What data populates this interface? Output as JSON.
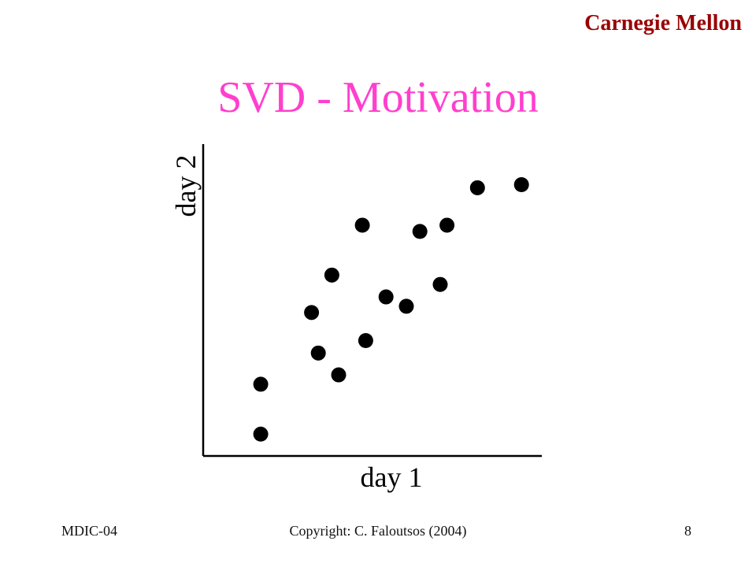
{
  "header": {
    "org": "Carnegie Mellon",
    "title": "SVD - Motivation"
  },
  "footer": {
    "left": "MDIC-04",
    "center": "Copyright:  C. Faloutsos (2004)",
    "right": "8"
  },
  "chart_data": {
    "type": "scatter",
    "xlabel": "day 1",
    "ylabel": "day 2",
    "grid": false,
    "legend": "none",
    "xlim": [
      0,
      100
    ],
    "ylim": [
      0,
      100
    ],
    "points": [
      {
        "x": 17,
        "y": 23
      },
      {
        "x": 17,
        "y": 7
      },
      {
        "x": 32,
        "y": 46
      },
      {
        "x": 34,
        "y": 33
      },
      {
        "x": 38,
        "y": 58
      },
      {
        "x": 40,
        "y": 26
      },
      {
        "x": 47,
        "y": 74
      },
      {
        "x": 48,
        "y": 37
      },
      {
        "x": 54,
        "y": 51
      },
      {
        "x": 60,
        "y": 48
      },
      {
        "x": 64,
        "y": 72
      },
      {
        "x": 70,
        "y": 55
      },
      {
        "x": 72,
        "y": 74
      },
      {
        "x": 81,
        "y": 86
      },
      {
        "x": 94,
        "y": 87
      }
    ],
    "color": "#000000"
  }
}
